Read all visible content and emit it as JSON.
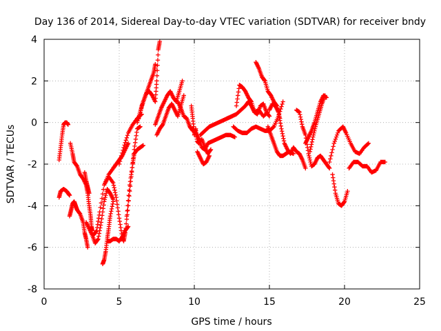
{
  "chart_data": {
    "type": "scatter",
    "title": "Day 136 of 2014, Sidereal Day-to-day VTEC variation (SDTVAR) for receiver bndy",
    "xlabel": "GPS time / hours",
    "ylabel": "SDTVAR / TECUs",
    "xlim": [
      0,
      25
    ],
    "ylim": [
      -8,
      4
    ],
    "xticks": [
      "0",
      "5",
      "10",
      "15",
      "20",
      "25"
    ],
    "yticks": [
      "-8",
      "-6",
      "-4",
      "-2",
      "0",
      "2",
      "4"
    ],
    "grid": true,
    "marker": "+",
    "color": "#ff0000",
    "series": [
      {
        "x": [
          1.0,
          1.1,
          1.2,
          1.3,
          1.4,
          1.5,
          1.6
        ],
        "y": [
          -1.8,
          -1.2,
          -0.6,
          -0.1,
          0.0,
          0.0,
          -0.1
        ]
      },
      {
        "x": [
          1.0,
          1.1,
          1.3,
          1.5,
          1.6,
          1.7
        ],
        "y": [
          -3.6,
          -3.3,
          -3.2,
          -3.3,
          -3.4,
          -3.5
        ]
      },
      {
        "x": [
          1.7,
          1.8,
          1.9,
          2.0,
          2.1,
          2.2,
          2.4,
          2.6,
          2.7,
          2.8,
          2.9
        ],
        "y": [
          -4.5,
          -4.2,
          -3.9,
          -3.8,
          -4.0,
          -4.2,
          -4.4,
          -4.8,
          -5.3,
          -5.6,
          -6.0
        ]
      },
      {
        "x": [
          1.75,
          1.9,
          2.0,
          2.2,
          2.4,
          2.6,
          2.8,
          2.9,
          3.0,
          3.1,
          3.15,
          3.2
        ],
        "y": [
          -1.0,
          -1.5,
          -1.9,
          -2.1,
          -2.5,
          -2.7,
          -3.0,
          -3.4,
          -4.0,
          -4.5,
          -5.0,
          -5.2
        ]
      },
      {
        "x": [
          2.7,
          2.8,
          2.9,
          3.0
        ],
        "y": [
          -2.4,
          -2.8,
          -3.1,
          -3.4
        ]
      },
      {
        "x": [
          2.8,
          3.0,
          3.2,
          3.4,
          3.6,
          3.8,
          4.0,
          4.2,
          4.4,
          4.6
        ],
        "y": [
          -4.8,
          -5.1,
          -5.4,
          -5.8,
          -5.6,
          -4.8,
          -3.8,
          -3.2,
          -3.4,
          -3.7
        ]
      },
      {
        "x": [
          3.9,
          4.0,
          4.1,
          4.2,
          4.3,
          4.4,
          4.6
        ],
        "y": [
          -6.8,
          -6.6,
          -6.2,
          -5.6,
          -5.1,
          -4.5,
          -3.8
        ]
      },
      {
        "x": [
          3.3,
          3.5,
          3.7,
          4.0,
          4.3,
          4.6,
          4.8,
          5.0,
          5.2,
          5.4,
          5.6
        ],
        "y": [
          -5.4,
          -5.2,
          -4.3,
          -3.0,
          -2.5,
          -2.2,
          -2.0,
          -1.8,
          -1.6,
          -1.3,
          -1.0
        ]
      },
      {
        "x": [
          4.0,
          4.3,
          4.6,
          4.8,
          5.0,
          5.2,
          5.3,
          5.4,
          5.6,
          5.8,
          6.0,
          6.2,
          6.4
        ],
        "y": [
          -3.0,
          -2.6,
          -2.9,
          -3.6,
          -4.6,
          -5.5,
          -5.7,
          -5.3,
          -4.0,
          -2.6,
          -1.3,
          -0.3,
          -0.2
        ]
      },
      {
        "x": [
          4.2,
          4.4,
          4.6,
          4.8,
          5.0,
          5.2,
          5.4,
          5.6
        ],
        "y": [
          -5.7,
          -5.7,
          -5.6,
          -5.6,
          -5.7,
          -5.5,
          -5.2,
          -5.0
        ]
      },
      {
        "x": [
          5.5,
          5.7,
          5.9,
          6.0,
          6.2,
          6.4,
          6.6
        ],
        "y": [
          -4.5,
          -3.0,
          -2.0,
          -1.5,
          -1.3,
          -1.2,
          -1.1
        ]
      },
      {
        "x": [
          5.0,
          5.3,
          5.6,
          5.9,
          6.2,
          6.5
        ],
        "y": [
          -2.0,
          -1.2,
          -0.5,
          -0.1,
          0.2,
          0.4
        ]
      },
      {
        "x": [
          6.3,
          6.5,
          6.7,
          6.9,
          7.1,
          7.3,
          7.4
        ],
        "y": [
          0.2,
          0.8,
          1.2,
          1.6,
          2.0,
          2.4,
          2.8
        ]
      },
      {
        "x": [
          6.2,
          6.4,
          6.6,
          6.8,
          7.0,
          7.2,
          7.4,
          7.5,
          7.6,
          7.7
        ],
        "y": [
          0.0,
          0.5,
          1.0,
          1.4,
          1.5,
          1.3,
          1.0,
          2.0,
          3.5,
          3.9
        ]
      },
      {
        "x": [
          7.4,
          7.6,
          7.8,
          8.0,
          8.2,
          8.4,
          8.6,
          8.8,
          9.0,
          9.2
        ],
        "y": [
          -0.1,
          0.3,
          0.7,
          1.0,
          1.3,
          1.5,
          1.2,
          1.0,
          1.5,
          2.0
        ]
      },
      {
        "x": [
          7.5,
          7.7,
          7.9,
          8.1,
          8.3,
          8.5,
          8.7,
          8.9,
          9.1,
          9.3
        ],
        "y": [
          -0.6,
          -0.3,
          -0.1,
          0.3,
          0.7,
          0.9,
          0.6,
          0.3,
          0.8,
          1.3
        ]
      },
      {
        "x": [
          8.9,
          9.1,
          9.3,
          9.5,
          9.7,
          9.9
        ],
        "y": [
          1.0,
          0.7,
          0.3,
          0.2,
          -0.2,
          -0.4
        ]
      },
      {
        "x": [
          9.8,
          9.9,
          10.0,
          10.1,
          10.2,
          10.3,
          10.5,
          10.7,
          10.9,
          11.1
        ],
        "y": [
          0.8,
          0.2,
          -0.6,
          -0.3,
          -0.9,
          -1.0,
          -0.8,
          -1.2,
          -1.5,
          -1.3
        ]
      },
      {
        "x": [
          9.9,
          10.1,
          10.3,
          10.5,
          10.7,
          10.9,
          11.2,
          11.5,
          11.8,
          12.1,
          12.4,
          12.7
        ],
        "y": [
          -0.3,
          -0.5,
          -0.8,
          -1.2,
          -1.3,
          -1.0,
          -0.9,
          -0.8,
          -0.7,
          -0.6,
          -0.6,
          -0.7
        ]
      },
      {
        "x": [
          10.2,
          10.4,
          10.6,
          10.8,
          11.0
        ],
        "y": [
          -1.4,
          -1.7,
          -2.0,
          -1.9,
          -1.6
        ]
      },
      {
        "x": [
          10.4,
          10.7,
          11.0,
          11.3,
          11.6,
          11.9,
          12.2,
          12.5,
          12.8,
          13.1,
          13.4,
          13.6
        ],
        "y": [
          -0.6,
          -0.4,
          -0.2,
          -0.1,
          0.0,
          0.1,
          0.2,
          0.3,
          0.4,
          0.6,
          0.8,
          1.0
        ]
      },
      {
        "x": [
          12.8,
          13.0,
          13.2,
          13.4,
          13.6,
          13.8,
          14.0,
          14.3,
          14.6,
          14.9
        ],
        "y": [
          0.8,
          1.8,
          1.7,
          1.5,
          1.2,
          1.0,
          0.5,
          0.6,
          0.3,
          0.5
        ]
      },
      {
        "x": [
          12.6,
          12.9,
          13.2,
          13.5,
          13.8,
          14.1,
          14.4,
          14.7,
          15.0,
          15.3,
          15.6,
          15.9
        ],
        "y": [
          -0.2,
          -0.4,
          -0.5,
          -0.5,
          -0.3,
          -0.2,
          -0.3,
          -0.4,
          -0.4,
          -0.2,
          0.3,
          1.0
        ]
      },
      {
        "x": [
          13.6,
          13.8,
          14.0,
          14.2,
          14.4,
          14.6,
          14.8,
          15.0
        ],
        "y": [
          1.0,
          0.8,
          0.5,
          0.4,
          0.8,
          0.9,
          0.5,
          0.3
        ]
      },
      {
        "x": [
          14.1,
          14.3,
          14.5,
          14.7,
          14.9,
          15.1,
          15.3,
          15.5,
          15.7
        ],
        "y": [
          2.9,
          2.6,
          2.2,
          2.0,
          1.5,
          1.3,
          1.0,
          0.8,
          0.2
        ]
      },
      {
        "x": [
          14.9,
          15.1,
          15.3,
          15.5,
          15.7,
          15.9,
          16.1,
          16.3,
          16.6
        ],
        "y": [
          -0.2,
          -0.6,
          -1.0,
          -1.4,
          -1.6,
          -1.6,
          -1.5,
          -1.4,
          -1.5
        ]
      },
      {
        "x": [
          15.0,
          15.2,
          15.4,
          15.6,
          15.8,
          16.0,
          16.2,
          16.4,
          16.6,
          16.8,
          17.0,
          17.2,
          17.4
        ],
        "y": [
          0.6,
          0.9,
          0.8,
          0.5,
          -0.3,
          -1.0,
          -1.3,
          -1.5,
          -1.2,
          -1.4,
          -1.5,
          -1.8,
          -2.2
        ]
      },
      {
        "x": [
          16.8,
          17.0,
          17.2,
          17.4,
          17.6,
          17.8,
          18.0,
          18.2,
          18.4,
          18.6,
          18.8,
          19.0
        ],
        "y": [
          0.6,
          0.5,
          -0.2,
          -0.6,
          -1.5,
          -2.1,
          -2.0,
          -1.7,
          -1.6,
          -1.8,
          -2.0,
          -2.2
        ]
      },
      {
        "x": [
          17.4,
          17.6,
          17.8,
          18.0,
          18.2,
          18.4,
          18.6,
          18.8
        ],
        "y": [
          -1.0,
          -0.7,
          -0.4,
          0.0,
          0.5,
          1.0,
          1.3,
          1.2
        ]
      },
      {
        "x": [
          17.7,
          17.9,
          18.1,
          18.3,
          18.5,
          18.7
        ],
        "y": [
          -1.4,
          -0.7,
          -0.1,
          0.4,
          0.9,
          1.3
        ]
      },
      {
        "x": [
          19.2,
          19.4,
          19.6,
          19.8,
          20.0,
          20.2
        ],
        "y": [
          -2.5,
          -3.4,
          -3.9,
          -4.0,
          -3.8,
          -3.3
        ]
      },
      {
        "x": [
          19.0,
          19.3,
          19.6,
          19.9,
          20.1,
          20.4,
          20.7,
          21.0,
          21.3,
          21.6
        ],
        "y": [
          -1.9,
          -1.0,
          -0.4,
          -0.2,
          -0.5,
          -1.0,
          -1.4,
          -1.5,
          -1.2,
          -1.0
        ]
      },
      {
        "x": [
          20.3,
          20.6,
          20.9,
          21.2,
          21.5,
          21.8,
          22.1,
          22.4,
          22.7
        ],
        "y": [
          -2.2,
          -1.9,
          -1.9,
          -2.1,
          -2.1,
          -2.4,
          -2.3,
          -1.9,
          -1.9
        ]
      }
    ]
  }
}
